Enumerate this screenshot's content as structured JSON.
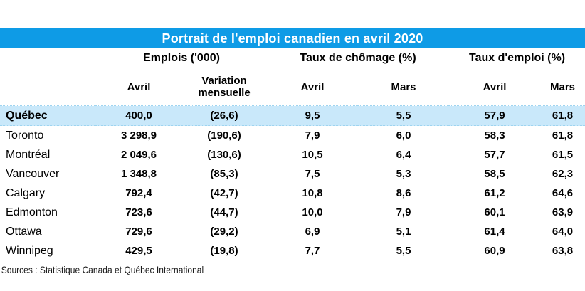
{
  "title": "Portrait de l'emploi canadien en avril 2020",
  "footer": "Sources : Statistique Canada et Québec International",
  "colors": {
    "title_bg": "#0E9BE6",
    "title_text": "#FFFFFF",
    "highlight_row_bg": "#C9E8FA",
    "grid_dot": "#9ED4F0",
    "text": "#000000"
  },
  "chart_data": {
    "type": "table",
    "title": "Portrait de l'emploi canadien en avril 2020",
    "column_groups": [
      {
        "label": "Emplois ('000)"
      },
      {
        "label": "Taux de chômage (%)"
      },
      {
        "label": "Taux d'emploi (%)"
      }
    ],
    "subheaders": [
      "Avril",
      "Variation mensuelle",
      "Avril",
      "Mars",
      "Avril",
      "Mars"
    ],
    "rows": [
      {
        "city": "Québec",
        "highlight": true,
        "values": [
          "400,0",
          "(26,6)",
          "9,5",
          "5,5",
          "57,9",
          "61,8"
        ]
      },
      {
        "city": "Toronto",
        "highlight": false,
        "values": [
          "3 298,9",
          "(190,6)",
          "7,9",
          "6,0",
          "58,3",
          "61,8"
        ]
      },
      {
        "city": "Montréal",
        "highlight": false,
        "values": [
          "2 049,6",
          "(130,6)",
          "10,5",
          "6,4",
          "57,7",
          "61,5"
        ]
      },
      {
        "city": "Vancouver",
        "highlight": false,
        "values": [
          "1 348,8",
          "(85,3)",
          "7,5",
          "5,3",
          "58,5",
          "62,3"
        ]
      },
      {
        "city": "Calgary",
        "highlight": false,
        "values": [
          "792,4",
          "(42,7)",
          "10,8",
          "8,6",
          "61,2",
          "64,6"
        ]
      },
      {
        "city": "Edmonton",
        "highlight": false,
        "values": [
          "723,6",
          "(44,7)",
          "10,0",
          "7,9",
          "60,1",
          "63,9"
        ]
      },
      {
        "city": "Ottawa",
        "highlight": false,
        "values": [
          "729,6",
          "(29,2)",
          "6,9",
          "5,1",
          "61,4",
          "64,0"
        ]
      },
      {
        "city": "Winnipeg",
        "highlight": false,
        "values": [
          "429,5",
          "(19,8)",
          "7,7",
          "5,5",
          "60,9",
          "63,8"
        ]
      }
    ],
    "source": "Sources : Statistique Canada et Québec International"
  }
}
